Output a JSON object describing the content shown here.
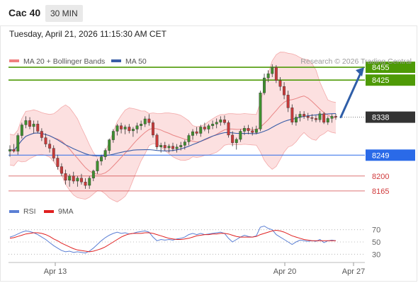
{
  "header": {
    "instrument": "Cac 40",
    "timeframe": "30 MIN",
    "datetime": "Tuesday, April 21, 2026 11:15:30 AM CET"
  },
  "chart_data": {
    "type": "candlestick",
    "legend": [
      {
        "name": "MA 20 + Bollinger Bands",
        "color": "#f08080"
      },
      {
        "name": "MA 50",
        "color": "#3a5ea8"
      }
    ],
    "credit": "Research © 2026 Trading Central",
    "ylim": [
      8135,
      8480
    ],
    "levels": [
      {
        "value": 8455,
        "label": "8455",
        "role": "resistance",
        "color": "#4e9a06"
      },
      {
        "value": 8425,
        "label": "8425",
        "role": "resistance",
        "color": "#4e9a06"
      },
      {
        "value": 8338,
        "label": "8338",
        "role": "last",
        "color": "#333333"
      },
      {
        "value": 8249,
        "label": "8249",
        "role": "pivot",
        "color": "#2a6ae8"
      },
      {
        "value": 8200,
        "label": "8200",
        "role": "support",
        "color": "#d0393b"
      },
      {
        "value": 8165,
        "label": "8165",
        "role": "support",
        "color": "#d0393b"
      }
    ],
    "projection": {
      "from": 8338,
      "to": 8455
    },
    "x_ticks": [
      "Apr 13",
      "Apr 20",
      "Apr 27"
    ],
    "candles": [
      [
        8258,
        8272,
        8245,
        8262
      ],
      [
        8262,
        8275,
        8255,
        8258
      ],
      [
        8258,
        8300,
        8250,
        8295
      ],
      [
        8295,
        8325,
        8288,
        8320
      ],
      [
        8320,
        8340,
        8312,
        8330
      ],
      [
        8330,
        8338,
        8310,
        8316
      ],
      [
        8316,
        8330,
        8300,
        8322
      ],
      [
        8322,
        8330,
        8300,
        8305
      ],
      [
        8305,
        8312,
        8282,
        8290
      ],
      [
        8290,
        8300,
        8268,
        8275
      ],
      [
        8275,
        8285,
        8255,
        8265
      ],
      [
        8265,
        8272,
        8235,
        8242
      ],
      [
        8242,
        8250,
        8215,
        8222
      ],
      [
        8222,
        8230,
        8200,
        8206
      ],
      [
        8206,
        8215,
        8180,
        8190
      ],
      [
        8190,
        8205,
        8175,
        8200
      ],
      [
        8200,
        8210,
        8182,
        8188
      ],
      [
        8188,
        8200,
        8175,
        8195
      ],
      [
        8195,
        8205,
        8180,
        8186
      ],
      [
        8186,
        8195,
        8170,
        8178
      ],
      [
        8178,
        8200,
        8170,
        8195
      ],
      [
        8195,
        8215,
        8188,
        8212
      ],
      [
        8212,
        8240,
        8205,
        8235
      ],
      [
        8235,
        8250,
        8225,
        8245
      ],
      [
        8245,
        8265,
        8238,
        8260
      ],
      [
        8260,
        8288,
        8252,
        8285
      ],
      [
        8285,
        8310,
        8278,
        8305
      ],
      [
        8305,
        8322,
        8295,
        8318
      ],
      [
        8318,
        8325,
        8300,
        8310
      ],
      [
        8310,
        8320,
        8298,
        8315
      ],
      [
        8315,
        8322,
        8300,
        8306
      ],
      [
        8306,
        8315,
        8292,
        8310
      ],
      [
        8310,
        8325,
        8300,
        8318
      ],
      [
        8318,
        8330,
        8308,
        8322
      ],
      [
        8322,
        8340,
        8315,
        8334
      ],
      [
        8334,
        8345,
        8318,
        8325
      ],
      [
        8325,
        8330,
        8290,
        8296
      ],
      [
        8296,
        8300,
        8262,
        8268
      ],
      [
        8268,
        8278,
        8255,
        8272
      ],
      [
        8272,
        8280,
        8260,
        8266
      ],
      [
        8266,
        8275,
        8255,
        8270
      ],
      [
        8270,
        8278,
        8258,
        8264
      ],
      [
        8264,
        8275,
        8255,
        8268
      ],
      [
        8268,
        8280,
        8260,
        8272
      ],
      [
        8272,
        8285,
        8262,
        8280
      ],
      [
        8280,
        8300,
        8272,
        8295
      ],
      [
        8295,
        8310,
        8285,
        8304
      ],
      [
        8304,
        8315,
        8295,
        8300
      ],
      [
        8300,
        8320,
        8292,
        8315
      ],
      [
        8315,
        8325,
        8305,
        8310
      ],
      [
        8310,
        8322,
        8300,
        8318
      ],
      [
        8318,
        8330,
        8310,
        8322
      ],
      [
        8322,
        8335,
        8312,
        8326
      ],
      [
        8326,
        8340,
        8318,
        8332
      ],
      [
        8332,
        8342,
        8320,
        8325
      ],
      [
        8325,
        8330,
        8290,
        8296
      ],
      [
        8296,
        8305,
        8270,
        8278
      ],
      [
        8278,
        8290,
        8262,
        8286
      ],
      [
        8286,
        8310,
        8280,
        8305
      ],
      [
        8305,
        8318,
        8296,
        8312
      ],
      [
        8312,
        8320,
        8298,
        8306
      ],
      [
        8306,
        8315,
        8295,
        8302
      ],
      [
        8302,
        8318,
        8298,
        8310
      ],
      [
        8310,
        8400,
        8305,
        8395
      ],
      [
        8395,
        8440,
        8390,
        8430
      ],
      [
        8430,
        8448,
        8420,
        8440
      ],
      [
        8440,
        8462,
        8432,
        8455
      ],
      [
        8455,
        8460,
        8418,
        8424
      ],
      [
        8424,
        8432,
        8400,
        8410
      ],
      [
        8410,
        8420,
        8380,
        8390
      ],
      [
        8390,
        8400,
        8350,
        8360
      ],
      [
        8360,
        8368,
        8320,
        8326
      ],
      [
        8326,
        8345,
        8318,
        8338
      ],
      [
        8338,
        8352,
        8328,
        8345
      ],
      [
        8345,
        8352,
        8334,
        8340
      ],
      [
        8340,
        8348,
        8330,
        8337
      ],
      [
        8337,
        8345,
        8328,
        8335
      ],
      [
        8335,
        8342,
        8326,
        8332
      ],
      [
        8332,
        8352,
        8326,
        8346
      ],
      [
        8346,
        8350,
        8322,
        8326
      ],
      [
        8326,
        8340,
        8320,
        8335
      ],
      [
        8335,
        8345,
        8325,
        8340
      ],
      [
        8340,
        8346,
        8332,
        8338
      ]
    ],
    "rsi": {
      "legend": [
        {
          "name": "RSI",
          "color": "#5b7fd4"
        },
        {
          "name": "9MA",
          "color": "#e02020"
        }
      ],
      "ylim": [
        20,
        80
      ],
      "ticks": [
        70,
        50,
        30
      ],
      "values": [
        58,
        60,
        63,
        66,
        68,
        67,
        65,
        62,
        58,
        54,
        49,
        44,
        40,
        36,
        34,
        35,
        33,
        34,
        33,
        32,
        35,
        40,
        46,
        52,
        57,
        61,
        64,
        66,
        64,
        65,
        63,
        64,
        66,
        67,
        68,
        66,
        58,
        52,
        54,
        53,
        54,
        53,
        55,
        56,
        58,
        62,
        64,
        62,
        64,
        62,
        63,
        64,
        65,
        66,
        64,
        56,
        50,
        54,
        58,
        61,
        59,
        58,
        60,
        74,
        76,
        72,
        70,
        62,
        58,
        54,
        50,
        46,
        50,
        53,
        52,
        51,
        52,
        51,
        54,
        49,
        52,
        53,
        52
      ],
      "ma": [
        56,
        57,
        59,
        61,
        63,
        64,
        65,
        65,
        64,
        62,
        59,
        55,
        52,
        48,
        45,
        42,
        39,
        37,
        36,
        35,
        34,
        35,
        37,
        39,
        42,
        46,
        50,
        54,
        58,
        61,
        63,
        64,
        64,
        64,
        65,
        65,
        64,
        62,
        60,
        58,
        56,
        55,
        54,
        54,
        55,
        56,
        58,
        60,
        61,
        62,
        62,
        63,
        63,
        64,
        64,
        63,
        61,
        59,
        58,
        58,
        58,
        58,
        59,
        62,
        64,
        66,
        68,
        69,
        68,
        66,
        63,
        60,
        58,
        56,
        54,
        53,
        52,
        52,
        52,
        52,
        52,
        52,
        52
      ]
    }
  }
}
